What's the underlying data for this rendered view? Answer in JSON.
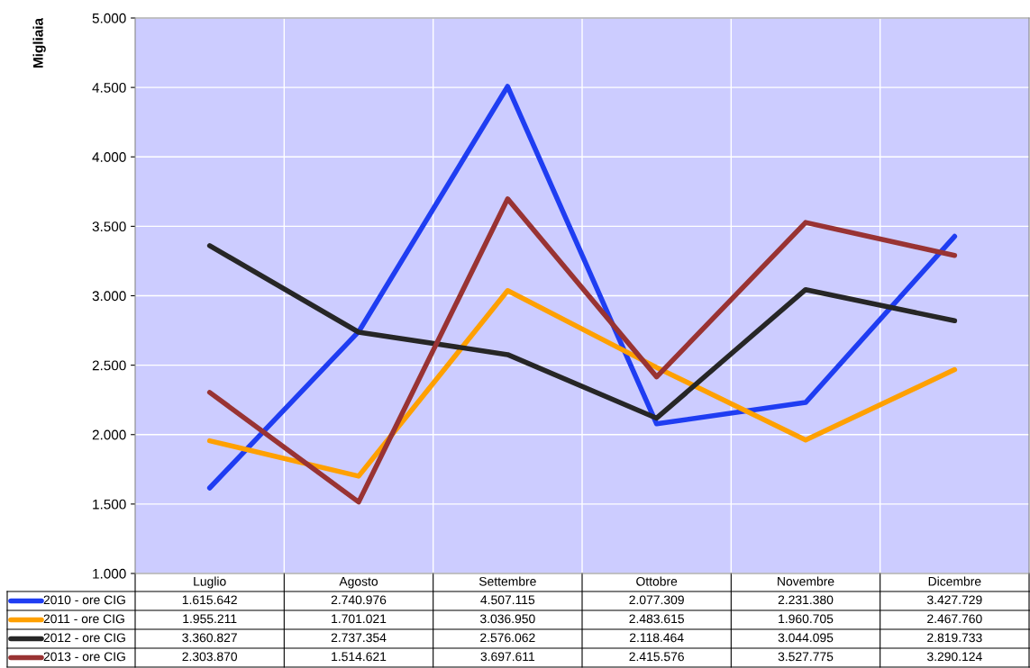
{
  "chart_data": {
    "type": "line",
    "ylabel": "Migliaia",
    "categories": [
      "Luglio",
      "Agosto",
      "Settembre",
      "Ottobre",
      "Novembre",
      "Dicembre"
    ],
    "series": [
      {
        "name": "2010 - ore CIG",
        "color": "#1f3df2",
        "values": [
          1615.642,
          2740.976,
          4507.115,
          2077.309,
          2231.38,
          3427.729
        ]
      },
      {
        "name": "2011 - ore CIG",
        "color": "#ffa000",
        "values": [
          1955.211,
          1701.021,
          3036.95,
          2483.615,
          1960.705,
          2467.76
        ]
      },
      {
        "name": "2012 - ore CIG",
        "color": "#262626",
        "values": [
          3360.827,
          2737.354,
          2576.062,
          2118.464,
          3044.095,
          2819.733
        ]
      },
      {
        "name": "2013 - ore CIG",
        "color": "#993333",
        "values": [
          2303.87,
          1514.621,
          3697.611,
          2415.576,
          3527.775,
          3290.124
        ]
      }
    ],
    "annotations": [
      "1.615.642",
      "2.740.976",
      "4.507.115",
      "2.077.309",
      "2.231.380",
      "3.427.729",
      "1.955.211",
      "1.701.021",
      "3.036.950",
      "2.483.615",
      "1.960.705",
      "2.467.760",
      "3.360.827",
      "2.737.354",
      "2.576.062",
      "2.118.464",
      "3.044.095",
      "2.819.733",
      "2.303.870",
      "1.514.621",
      "3.697.611",
      "2.415.576",
      "3.527.775",
      "3.290.124"
    ],
    "ylim": [
      1000,
      5000
    ],
    "yticks": [
      {
        "value": 1000,
        "label": "1.000"
      },
      {
        "value": 1500,
        "label": "1.500"
      },
      {
        "value": 2000,
        "label": "2.000"
      },
      {
        "value": 2500,
        "label": "2.500"
      },
      {
        "value": 3000,
        "label": "3.000"
      },
      {
        "value": 3500,
        "label": "3.500"
      },
      {
        "value": 4000,
        "label": "4.000"
      },
      {
        "value": 4500,
        "label": "4.500"
      },
      {
        "value": 5000,
        "label": "5.000"
      }
    ],
    "grid": true,
    "legend": "bottom",
    "marker": "none",
    "line_style": "solid"
  }
}
